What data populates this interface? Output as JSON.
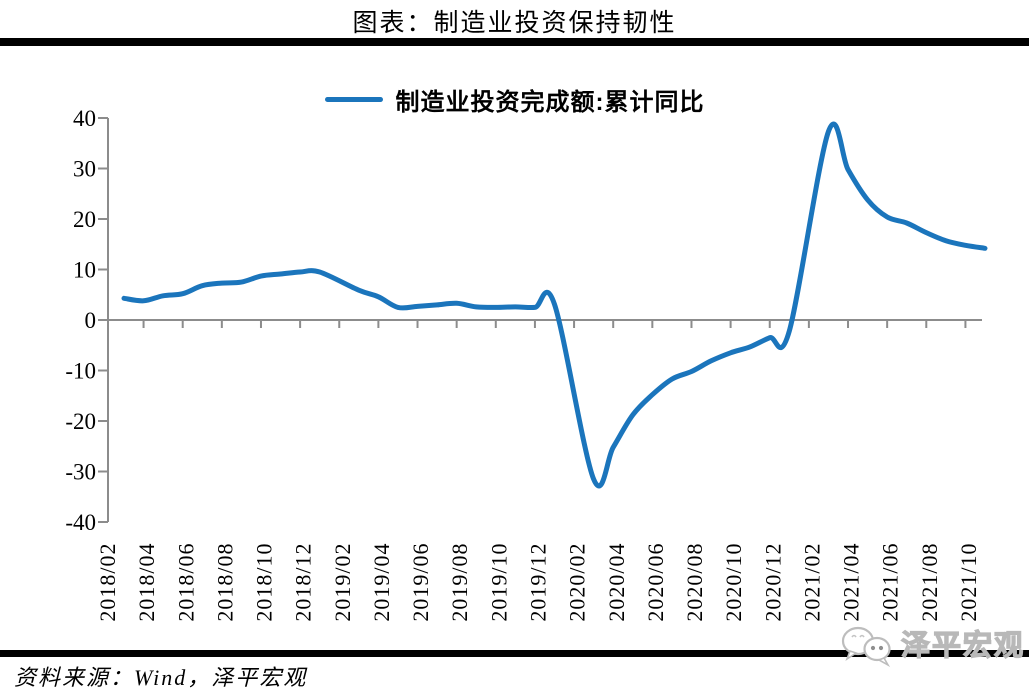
{
  "title": "图表：制造业投资保持韧性",
  "source": "资料来源：Wind，泽平宏观",
  "watermark": "泽平宏观",
  "colors": {
    "line": "#1B75BC",
    "axis": "#8C8C8C",
    "divider": "#000000",
    "text": "#000000",
    "watermark_text": "#C8C8C8",
    "watermark_stroke": "#B8B8B8"
  },
  "chart_data": {
    "type": "line",
    "title": "图表：制造业投资保持韧性",
    "legend_position": "top-center",
    "grid": false,
    "smoothed": true,
    "ylim": [
      -40,
      40
    ],
    "y_ticks": [
      40,
      30,
      20,
      10,
      0,
      -10,
      -20,
      -30,
      -40
    ],
    "x_tick_labels": [
      "2018/02",
      "2018/04",
      "2018/06",
      "2018/08",
      "2018/10",
      "2018/12",
      "2019/02",
      "2019/04",
      "2019/06",
      "2019/08",
      "2019/10",
      "2019/12",
      "2020/02",
      "2020/04",
      "2020/06",
      "2020/08",
      "2020/10",
      "2020/12",
      "2021/02",
      "2021/04",
      "2021/06",
      "2021/08",
      "2021/10"
    ],
    "series": [
      {
        "name": "制造业投资完成额:累计同比",
        "unit": "%",
        "points": [
          [
            "2018/02",
            4.3
          ],
          [
            "2018/03",
            3.8
          ],
          [
            "2018/04",
            4.8
          ],
          [
            "2018/05",
            5.2
          ],
          [
            "2018/06",
            6.8
          ],
          [
            "2018/07",
            7.3
          ],
          [
            "2018/08",
            7.5
          ],
          [
            "2018/09",
            8.7
          ],
          [
            "2018/10",
            9.1
          ],
          [
            "2018/11",
            9.5
          ],
          [
            "2018/12",
            9.5
          ],
          [
            "2019/02",
            5.9
          ],
          [
            "2019/03",
            4.6
          ],
          [
            "2019/04",
            2.5
          ],
          [
            "2019/05",
            2.7
          ],
          [
            "2019/06",
            3.0
          ],
          [
            "2019/07",
            3.3
          ],
          [
            "2019/08",
            2.6
          ],
          [
            "2019/09",
            2.5
          ],
          [
            "2019/10",
            2.6
          ],
          [
            "2019/11",
            2.5
          ],
          [
            "2019/12",
            3.1
          ],
          [
            "2020/02",
            -31.5
          ],
          [
            "2020/03",
            -25.2
          ],
          [
            "2020/04",
            -18.8
          ],
          [
            "2020/05",
            -14.8
          ],
          [
            "2020/06",
            -11.7
          ],
          [
            "2020/07",
            -10.2
          ],
          [
            "2020/08",
            -8.1
          ],
          [
            "2020/09",
            -6.5
          ],
          [
            "2020/10",
            -5.3
          ],
          [
            "2020/11",
            -3.5
          ],
          [
            "2020/12",
            -2.2
          ],
          [
            "2021/02",
            37.3
          ],
          [
            "2021/03",
            29.8
          ],
          [
            "2021/04",
            23.8
          ],
          [
            "2021/05",
            20.4
          ],
          [
            "2021/06",
            19.2
          ],
          [
            "2021/07",
            17.3
          ],
          [
            "2021/08",
            15.7
          ],
          [
            "2021/09",
            14.8
          ],
          [
            "2021/10",
            14.2
          ]
        ]
      }
    ]
  }
}
